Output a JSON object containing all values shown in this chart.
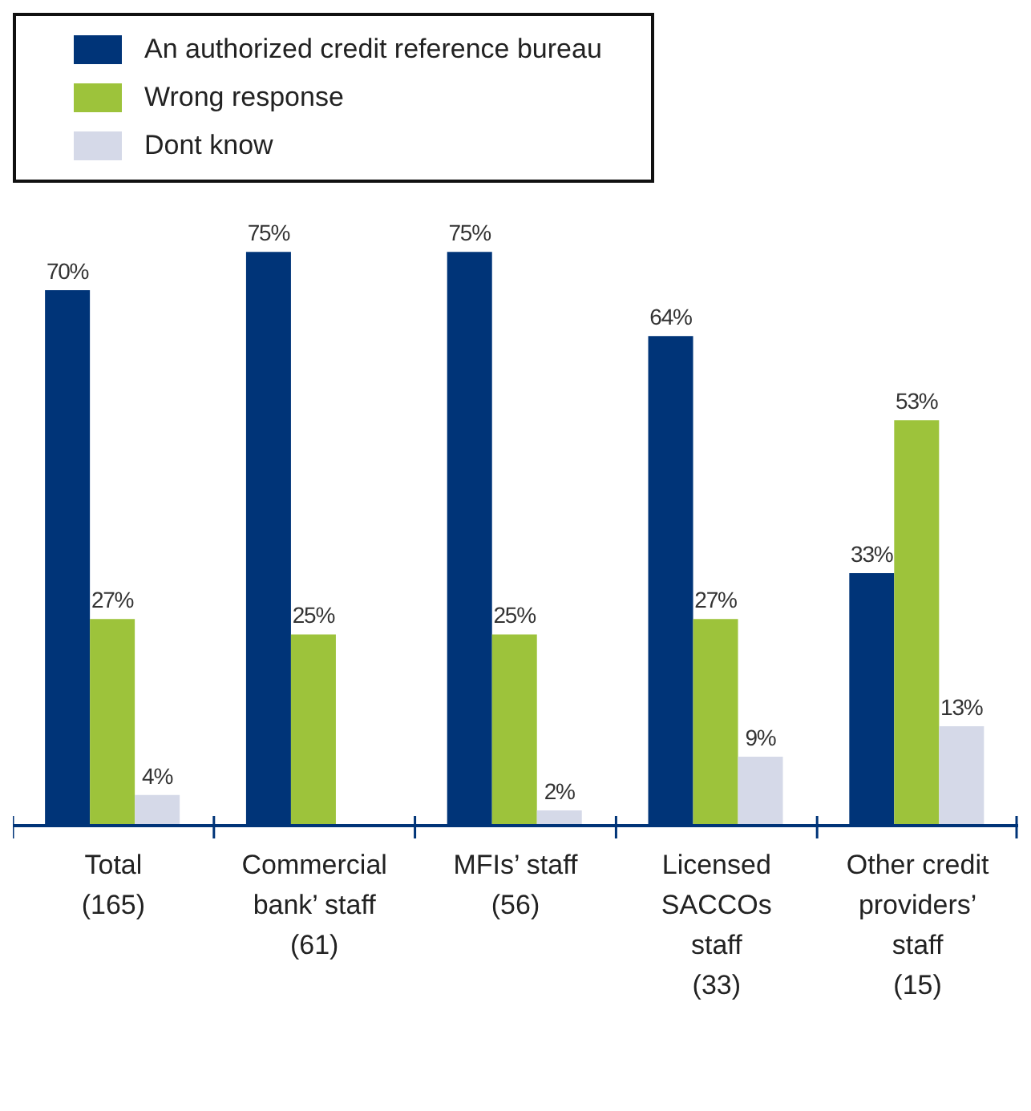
{
  "chart_data": {
    "type": "bar",
    "categories": [
      "Total\n(165)",
      "Commercial\nbank’ staff\n(61)",
      "MFIs’ staff\n(56)",
      "Licensed\nSACCOs\nstaff\n(33)",
      "Other credit\nproviders’\nstaff\n(15)"
    ],
    "series": [
      {
        "name": "An authorized credit reference bureau",
        "color": "#003478",
        "values": [
          70,
          75,
          75,
          64,
          33
        ],
        "value_labels": [
          "70%",
          "75%",
          "75%",
          "64%",
          "33%"
        ]
      },
      {
        "name": "Wrong response",
        "color": "#9dc33b",
        "values": [
          27,
          25,
          25,
          27,
          53
        ],
        "value_labels": [
          "27%",
          "25%",
          "25%",
          "27%",
          "53%"
        ]
      },
      {
        "name": "Dont know",
        "color": "#d5d9e8",
        "values": [
          4,
          null,
          2,
          9,
          13
        ],
        "value_labels": [
          "4%",
          null,
          "2%",
          "9%",
          "13%"
        ]
      }
    ],
    "legend": "top left",
    "grid": false
  }
}
